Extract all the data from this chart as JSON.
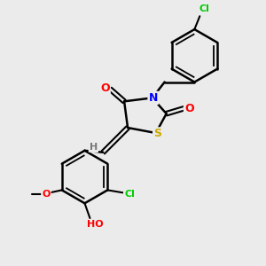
{
  "background_color": "#ebebeb",
  "bond_color": "#000000",
  "atom_colors": {
    "O": "#ff0000",
    "N": "#0000ff",
    "S": "#ccaa00",
    "Cl": "#00cc00",
    "H": "#777777",
    "C": "#000000"
  },
  "figsize": [
    3.0,
    3.0
  ],
  "dpi": 100
}
